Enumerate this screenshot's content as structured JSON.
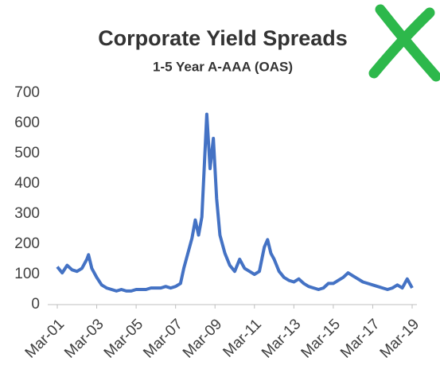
{
  "chart_data": {
    "type": "line",
    "title": "Corporate Yield Spreads",
    "subtitle": "1-5 Year A-AAA (OAS)",
    "x": [
      "2001-03",
      "2001-06",
      "2001-09",
      "2001-12",
      "2002-03",
      "2002-06",
      "2002-09",
      "2002-10",
      "2002-12",
      "2003-03",
      "2003-06",
      "2003-09",
      "2003-12",
      "2004-03",
      "2004-06",
      "2004-09",
      "2004-12",
      "2005-03",
      "2005-06",
      "2005-09",
      "2005-12",
      "2006-03",
      "2006-06",
      "2006-09",
      "2006-12",
      "2007-03",
      "2007-06",
      "2007-08",
      "2007-11",
      "2008-01",
      "2008-03",
      "2008-05",
      "2008-07",
      "2008-10",
      "2008-12",
      "2009-02",
      "2009-04",
      "2009-06",
      "2009-09",
      "2009-12",
      "2010-03",
      "2010-06",
      "2010-09",
      "2010-12",
      "2011-03",
      "2011-06",
      "2011-09",
      "2011-11",
      "2012-01",
      "2012-03",
      "2012-06",
      "2012-09",
      "2012-12",
      "2013-03",
      "2013-06",
      "2013-09",
      "2013-12",
      "2014-03",
      "2014-06",
      "2014-09",
      "2014-12",
      "2015-03",
      "2015-06",
      "2015-09",
      "2015-12",
      "2016-03",
      "2016-06",
      "2016-09",
      "2016-12",
      "2017-03",
      "2017-06",
      "2017-09",
      "2017-12",
      "2018-03",
      "2018-06",
      "2018-09",
      "2018-12",
      "2019-03"
    ],
    "series": [
      {
        "name": "1-5 Year A-AAA (OAS)",
        "color": "#4472c4",
        "values": [
          125,
          105,
          130,
          115,
          110,
          120,
          150,
          165,
          120,
          90,
          65,
          55,
          50,
          45,
          50,
          45,
          45,
          50,
          50,
          50,
          55,
          55,
          55,
          60,
          55,
          60,
          70,
          120,
          180,
          220,
          280,
          230,
          290,
          630,
          450,
          550,
          350,
          230,
          170,
          130,
          110,
          150,
          120,
          110,
          100,
          110,
          190,
          215,
          170,
          150,
          110,
          90,
          80,
          75,
          85,
          70,
          60,
          55,
          50,
          55,
          70,
          70,
          80,
          90,
          105,
          95,
          85,
          75,
          70,
          65,
          60,
          55,
          50,
          55,
          65,
          55,
          85,
          55
        ]
      }
    ],
    "xlim": [
      "2001-03",
      "2019-03"
    ],
    "xticks": [
      {
        "value": "2001-03",
        "label": "Mar-01"
      },
      {
        "value": "2003-03",
        "label": "Mar-03"
      },
      {
        "value": "2005-03",
        "label": "Mar-05"
      },
      {
        "value": "2007-03",
        "label": "Mar-07"
      },
      {
        "value": "2009-03",
        "label": "Mar-09"
      },
      {
        "value": "2011-03",
        "label": "Mar-11"
      },
      {
        "value": "2013-03",
        "label": "Mar-13"
      },
      {
        "value": "2015-03",
        "label": "Mar-15"
      },
      {
        "value": "2017-03",
        "label": "Mar-17"
      },
      {
        "value": "2019-03",
        "label": "Mar-19"
      }
    ],
    "ylim": [
      0,
      700
    ],
    "yticks": [
      0,
      100,
      200,
      300,
      400,
      500,
      600,
      700
    ],
    "grid": false
  }
}
